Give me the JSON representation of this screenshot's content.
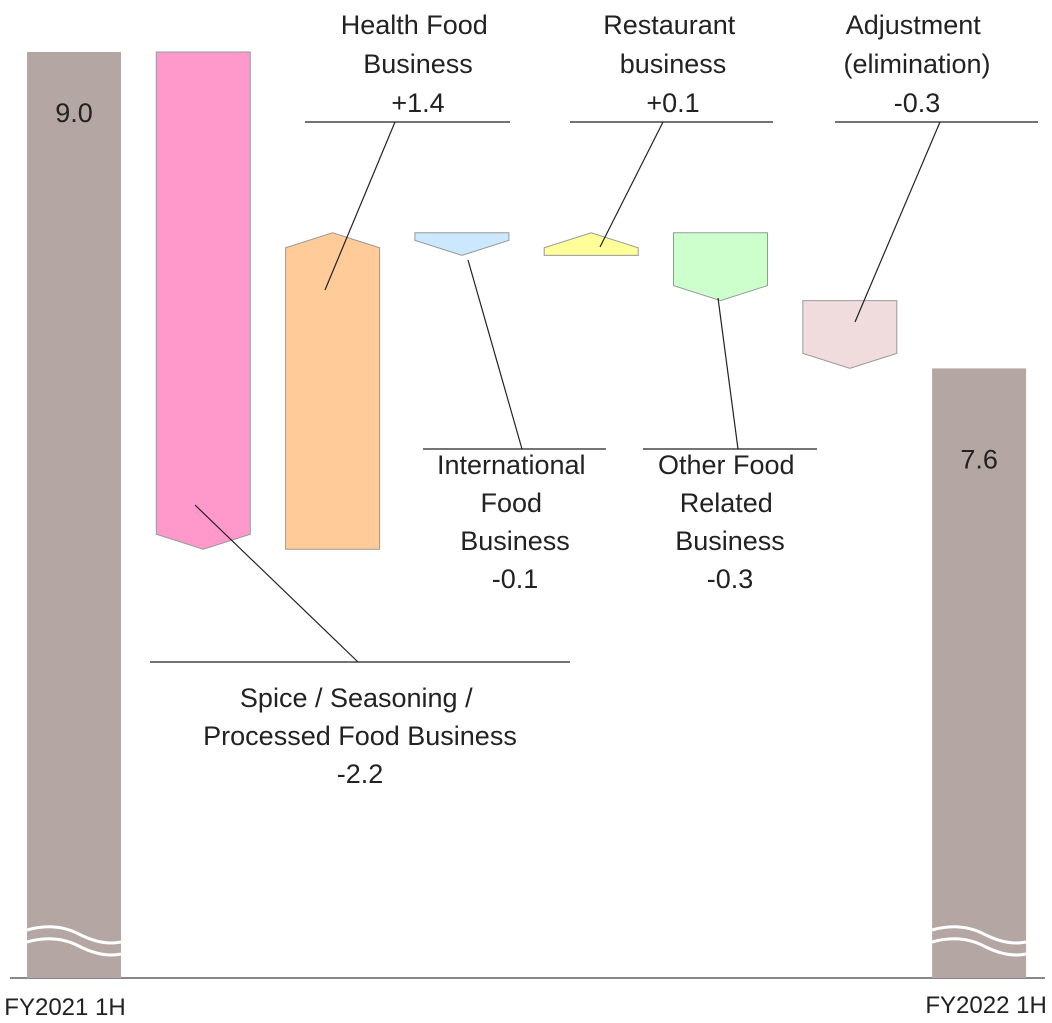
{
  "chart_data": {
    "type": "waterfall",
    "categories": [
      "FY2021 1H",
      "Spice / Seasoning / Processed Food Business",
      "Health Food Business",
      "International Food Business",
      "Restaurant business",
      "Other Food Related Business",
      "Adjustment (elimination)",
      "FY2022 1H"
    ],
    "values": [
      9.0,
      -2.2,
      1.4,
      -0.1,
      0.1,
      -0.3,
      -0.3,
      7.6
    ],
    "value_labels": [
      "9.0",
      "-2.2",
      "+1.4",
      "-0.1",
      "+0.1",
      "-0.3",
      "-0.3",
      "7.6"
    ],
    "colors": [
      "#b4a7a3",
      "#ff99cc",
      "#ffcc99",
      "#cce8ff",
      "#ffff99",
      "#ccffcc",
      "#f0dcdc",
      "#b4a7a3"
    ]
  }
}
